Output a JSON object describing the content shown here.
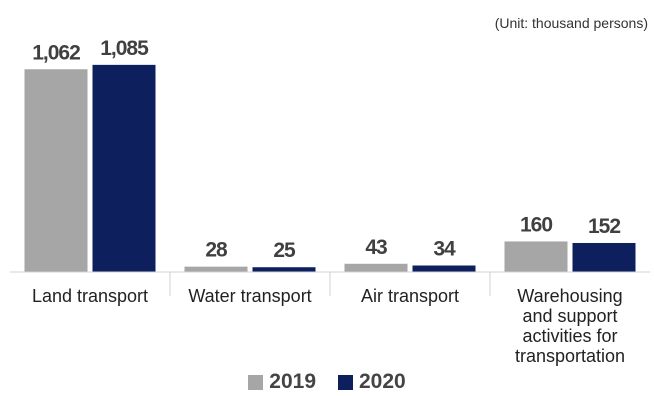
{
  "unit_note": "(Unit: thousand persons)",
  "colors": {
    "series_2019": "#a6a6a6",
    "series_2020": "#0d1f5c"
  },
  "legend": [
    {
      "label": "2019",
      "color": "#a6a6a6"
    },
    {
      "label": "2020",
      "color": "#0d1f5c"
    }
  ],
  "chart_data": {
    "type": "bar",
    "title": "",
    "xlabel": "",
    "ylabel": "",
    "unit": "thousand persons",
    "categories": [
      "Land transport",
      "Water transport",
      "Air transport",
      "Warehousing and support activities for transportation"
    ],
    "category_lines": [
      [
        "Land transport"
      ],
      [
        "Water transport"
      ],
      [
        "Air transport"
      ],
      [
        "Warehousing",
        "and support",
        "activities for",
        "transportation"
      ]
    ],
    "series": [
      {
        "name": "2019",
        "values": [
          1062,
          28,
          43,
          160
        ],
        "labels": [
          "1,062",
          "28",
          "43",
          "160"
        ],
        "color": "#a6a6a6"
      },
      {
        "name": "2020",
        "values": [
          1085,
          25,
          34,
          152
        ],
        "labels": [
          "1,085",
          "25",
          "34",
          "152"
        ],
        "color": "#0d1f5c"
      }
    ],
    "ylim": [
      0,
      1100
    ],
    "grid": false,
    "legend_position": "bottom-center"
  }
}
